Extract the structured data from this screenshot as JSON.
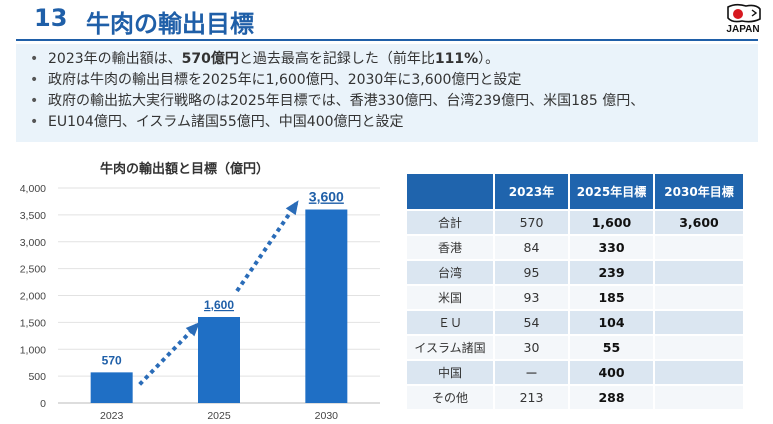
{
  "header": {
    "number": "13",
    "title": "牛肉の輸出目標",
    "logo_text": "JAPAN"
  },
  "bullets": [
    {
      "pre": "2023年の輸出額は、",
      "bold": "570億円",
      "mid": "と過去最高を記録した（前年比",
      "bold2": "111%",
      "post": "）。"
    },
    {
      "text": "政府は牛肉の輸出目標を2025年に1,600億円、2030年に3,600億円と設定"
    },
    {
      "text": "政府の輸出拡大実行戦略のは2025年目標では、香港330億円、台湾239億円、米国185 億円、"
    },
    {
      "text": "EU104億円、イスラム諸国55億円、中国400億円と設定"
    }
  ],
  "chart_data": {
    "type": "bar",
    "title": "牛肉の輸出額と目標（億円）",
    "categories": [
      "2023",
      "2025",
      "2030"
    ],
    "values": [
      570,
      1600,
      3600
    ],
    "value_labels": [
      "570",
      "1,600",
      "3,600"
    ],
    "ylim": [
      0,
      4000
    ],
    "yticks": [
      "0",
      "500",
      "1,000",
      "1,500",
      "2,000",
      "2,500",
      "3,000",
      "3,500",
      "4,000"
    ],
    "ytick_values": [
      0,
      500,
      1000,
      1500,
      2000,
      2500,
      3000,
      3500,
      4000
    ],
    "bar_color": "#1f6fc5",
    "grid": true,
    "annotations": "dotted arrows between bars"
  },
  "table": {
    "headers": [
      "",
      "2023年",
      "2025年目標",
      "2030年目標"
    ],
    "rows": [
      {
        "label": "合計",
        "y2023": "570",
        "y2025": "1,600",
        "y2030": "3,600"
      },
      {
        "label": "香港",
        "y2023": "84",
        "y2025": "330",
        "y2030": ""
      },
      {
        "label": "台湾",
        "y2023": "95",
        "y2025": "239",
        "y2030": ""
      },
      {
        "label": "米国",
        "y2023": "93",
        "y2025": "185",
        "y2030": ""
      },
      {
        "label": "ＥＵ",
        "y2023": "54",
        "y2025": "104",
        "y2030": ""
      },
      {
        "label": "イスラム諸国",
        "y2023": "30",
        "y2025": "55",
        "y2030": ""
      },
      {
        "label": "中国",
        "y2023": "ー",
        "y2025": "400",
        "y2030": ""
      },
      {
        "label": "その他",
        "y2023": "213",
        "y2025": "288",
        "y2030": ""
      }
    ]
  },
  "colors": {
    "accent": "#1f5fa8",
    "bar": "#1f6fc5",
    "table_header": "#1f64ad",
    "bullet_bg": "#eaf3fa"
  }
}
